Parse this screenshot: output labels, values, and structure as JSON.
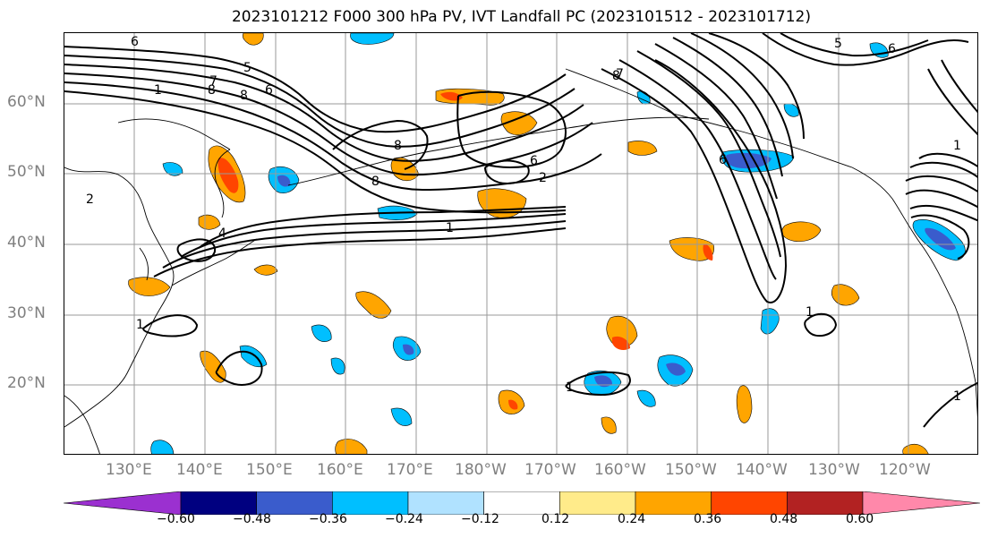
{
  "title": "2023101212 F000 300 hPa PV, IVT Landfall PC (2023101512 - 2023101712)",
  "lat_labels": [
    "60°N",
    "50°N",
    "40°N",
    "30°N",
    "20°N"
  ],
  "lon_labels": [
    "130°E",
    "140°E",
    "150°E",
    "160°E",
    "170°E",
    "180°W",
    "170°W",
    "160°W",
    "150°W",
    "140°W",
    "130°W",
    "120°W"
  ],
  "contour_labels": [
    "6",
    "5",
    "6",
    "7",
    "8",
    "8",
    "1",
    "6",
    "2",
    "4",
    "2",
    "1",
    "8",
    "8",
    "6",
    "7",
    "1",
    "1",
    "1",
    "1",
    "5",
    "6",
    "1",
    "8"
  ],
  "colorbar": {
    "ticks": [
      "−0.60",
      "−0.48",
      "−0.36",
      "−0.24",
      "−0.12",
      "0.12",
      "0.24",
      "0.36",
      "0.48",
      "0.60"
    ],
    "colors": [
      "#9b30d0",
      "#000080",
      "#3a5ccc",
      "#00bfff",
      "#b0e2ff",
      "#ffffff",
      "#ffeb8a",
      "#ffa500",
      "#ff4500",
      "#b22222",
      "#ff88aa"
    ]
  }
}
